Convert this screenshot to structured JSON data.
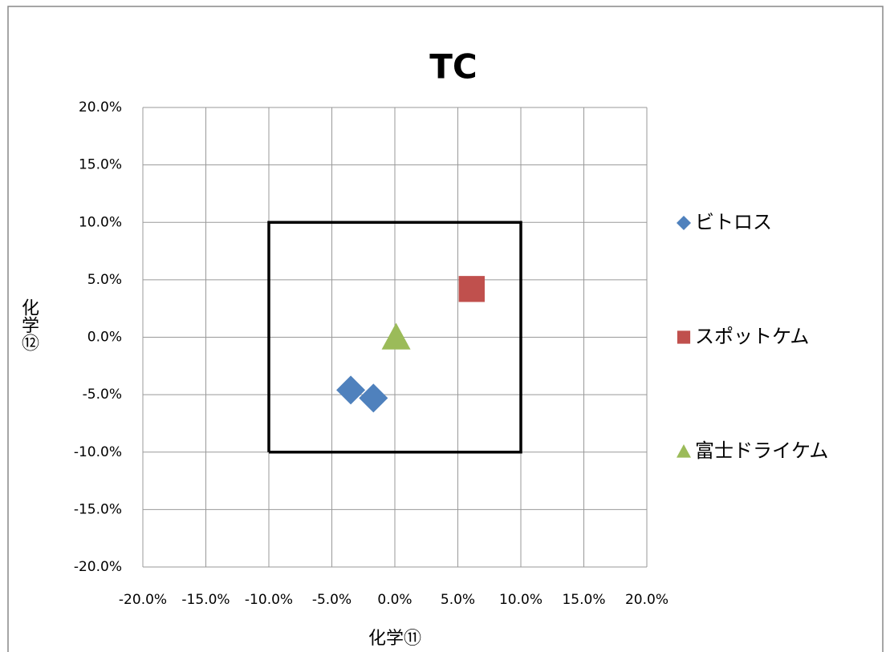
{
  "chart_data": {
    "type": "scatter",
    "title": "TC",
    "x_label": "化学⑪",
    "y_label": "化学⑫",
    "xlim": [
      -20,
      20
    ],
    "ylim": [
      -20,
      20
    ],
    "xticks": [
      {
        "value": -20,
        "label": "-20.0%"
      },
      {
        "value": -15,
        "label": "-15.0%"
      },
      {
        "value": -10,
        "label": "-10.0%"
      },
      {
        "value": -5,
        "label": "-5.0%"
      },
      {
        "value": 0,
        "label": "0.0%"
      },
      {
        "value": 5,
        "label": "5.0%"
      },
      {
        "value": 10,
        "label": "10.0%"
      },
      {
        "value": 15,
        "label": "15.0%"
      },
      {
        "value": 20,
        "label": "20.0%"
      }
    ],
    "yticks": [
      {
        "value": -20,
        "label": "-20.0%"
      },
      {
        "value": -15,
        "label": "-15.0%"
      },
      {
        "value": -10,
        "label": "-10.0%"
      },
      {
        "value": -5,
        "label": "-5.0%"
      },
      {
        "value": 0,
        "label": "0.0%"
      },
      {
        "value": 5,
        "label": "5.0%"
      },
      {
        "value": 10,
        "label": "10.0%"
      },
      {
        "value": 15,
        "label": "15.0%"
      },
      {
        "value": 20,
        "label": "20.0%"
      }
    ],
    "grid": true,
    "legend": "right",
    "series": [
      {
        "name": "ビトロス",
        "color": "#4f81bd",
        "marker": "diamond",
        "x": [
          -3.5,
          -1.7
        ],
        "values": [
          -4.6,
          -5.3
        ]
      },
      {
        "name": "スポットケム",
        "color": "#c0504d",
        "marker": "square",
        "x": [
          6.1
        ],
        "values": [
          4.2
        ]
      },
      {
        "name": "富士ドライケム",
        "color": "#9bbb59",
        "marker": "triangle",
        "x": [
          0.1
        ],
        "values": [
          0.0
        ]
      }
    ],
    "outline": {
      "color": "#000000",
      "x": [
        -10,
        10,
        10,
        -10,
        -10
      ],
      "values": [
        -10,
        -10,
        10,
        10,
        -10
      ]
    }
  }
}
